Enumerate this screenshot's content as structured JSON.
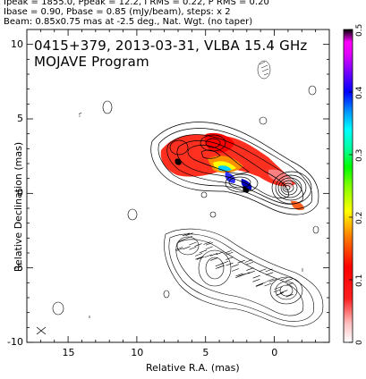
{
  "header": {
    "line1": "Ipeak = 1855.0, Ppeak = 12.2, I RMS = 0.22, P RMS = 0.20",
    "line2": "Ibase = 0.90, Pbase = 0.85 (mJy/beam), steps: x 2",
    "line3": "Beam: 0.85x0.75 mas at -2.5 deg., Nat. Wgt. (no taper)"
  },
  "overlay": {
    "title": "0415+379, 2013-03-31, VLBA 15.4 GHz",
    "subtitle": "MOJAVE Program"
  },
  "chart_data": {
    "type": "contour",
    "xlabel": "Relative R.A. (mas)",
    "ylabel": "Relative Declination (mas)",
    "xlim": [
      18,
      -4
    ],
    "ylim": [
      -10,
      11
    ],
    "xticks": [
      15,
      10,
      5,
      0
    ],
    "yticks": [
      10,
      5,
      0,
      -5,
      -10
    ],
    "colorbar": {
      "range": [
        0,
        0.5
      ],
      "ticks": [
        "0",
        "0.1",
        "0.2",
        "0.3",
        "0.4",
        "0.5"
      ],
      "colors": [
        "#ffffff",
        "#ffb0b0",
        "#ff3030",
        "#ff0000",
        "#ff8000",
        "#ffd000",
        "#ffff00",
        "#a0ff00",
        "#00ff00",
        "#00ff80",
        "#00ffff",
        "#00a0ff",
        "#0000ff",
        "#6000ff",
        "#c000ff",
        "#ff00ff",
        "#000000"
      ]
    },
    "panels": [
      "total intensity (upper)",
      "polarization (lower, shifted)"
    ]
  }
}
